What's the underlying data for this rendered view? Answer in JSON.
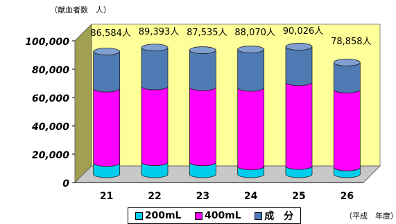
{
  "unit_label": "（献血者数　人）",
  "x_unit_label": "（平成　年度）",
  "colors": {
    "s200": "#00ccee",
    "s400": "#ff00ff",
    "component": "#4f7bb5",
    "wall": "#ffff99",
    "floor": "#c8c8c8"
  },
  "chart_data": {
    "type": "bar",
    "stacked": true,
    "categories": [
      "21",
      "22",
      "23",
      "24",
      "25",
      "26"
    ],
    "series": [
      {
        "name": "200mL",
        "values": [
          8000,
          8500,
          8400,
          5500,
          5800,
          4800
        ]
      },
      {
        "name": "400mL",
        "values": [
          52500,
          53500,
          53100,
          55500,
          59200,
          55000
        ]
      },
      {
        "name": "成　分",
        "values": [
          26084,
          27393,
          26035,
          27070,
          25026,
          19058
        ]
      }
    ],
    "totals": [
      "86,584人",
      "89,393人",
      "87,535人",
      "88,070人",
      "90,026人",
      "78,858人"
    ],
    "ylim": [
      0,
      100000
    ],
    "yticks": [
      "0",
      "20,000",
      "40,000",
      "60,000",
      "80,000",
      "100,000"
    ],
    "ytick_values": [
      0,
      20000,
      40000,
      60000,
      80000,
      100000
    ],
    "legend_position": "bottom",
    "grid": false
  }
}
